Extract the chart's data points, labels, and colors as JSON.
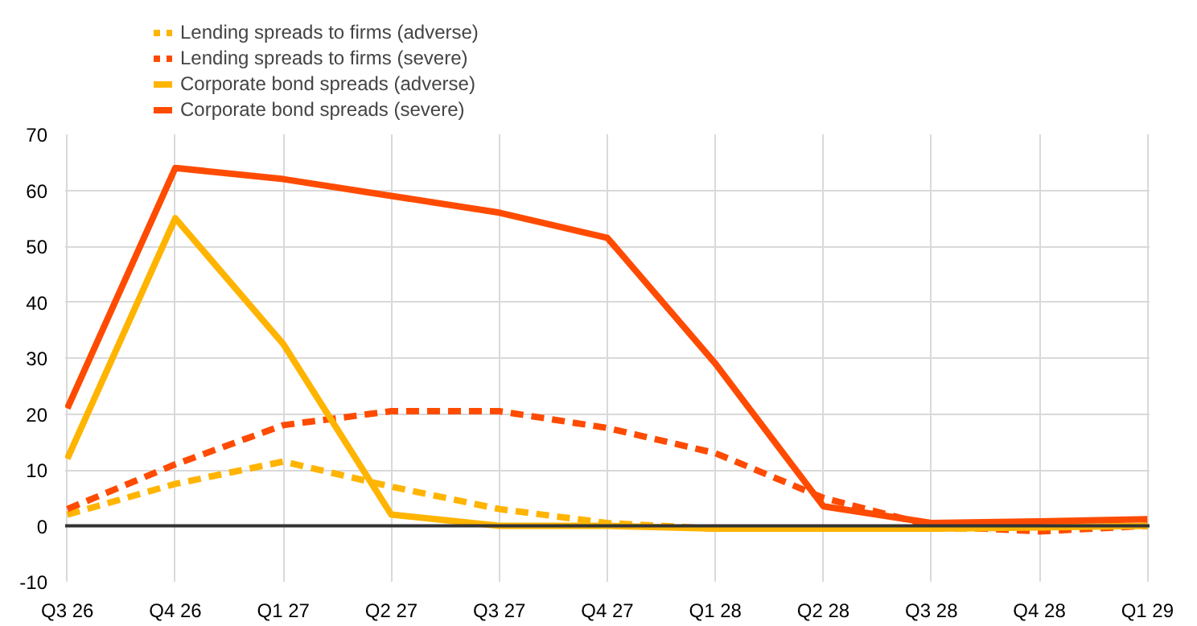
{
  "chart_data": {
    "type": "line",
    "categories": [
      "Q3 26",
      "Q4 26",
      "Q1 27",
      "Q2 27",
      "Q3 27",
      "Q4 27",
      "Q1 28",
      "Q2 28",
      "Q3 28",
      "Q4 28",
      "Q1 29"
    ],
    "series": [
      {
        "name": "Lending spreads to firms (adverse)",
        "color": "#ffb400",
        "line_style": "dashed",
        "values": [
          2,
          7.5,
          11.5,
          7,
          3,
          0.5,
          -0.5,
          -0.5,
          -0.5,
          -0.5,
          0
        ]
      },
      {
        "name": "Lending spreads to firms (severe)",
        "color": "#ff4b00",
        "line_style": "dashed",
        "values": [
          3,
          11,
          18,
          20.5,
          20.5,
          17.5,
          13,
          5,
          0,
          -1,
          0
        ]
      },
      {
        "name": "Corporate bond spreads (adverse)",
        "color": "#ffb400",
        "line_style": "solid",
        "values": [
          12,
          55,
          32.5,
          2,
          0,
          0,
          -0.5,
          -0.5,
          -0.5,
          -0.3,
          0
        ]
      },
      {
        "name": "Corporate bond spreads (severe)",
        "color": "#ff4b00",
        "line_style": "solid",
        "values": [
          21,
          64,
          62,
          59,
          56,
          51.5,
          29,
          3.5,
          0.5,
          0.8,
          1.2
        ]
      }
    ],
    "ylim": [
      -10,
      70
    ],
    "yticks": [
      -10,
      0,
      10,
      20,
      30,
      40,
      50,
      60,
      70
    ],
    "grid": true,
    "legend": "top left",
    "marker": "none",
    "ref_lines": [
      {
        "axis": "y",
        "value": 0,
        "color": "#333333"
      }
    ]
  }
}
